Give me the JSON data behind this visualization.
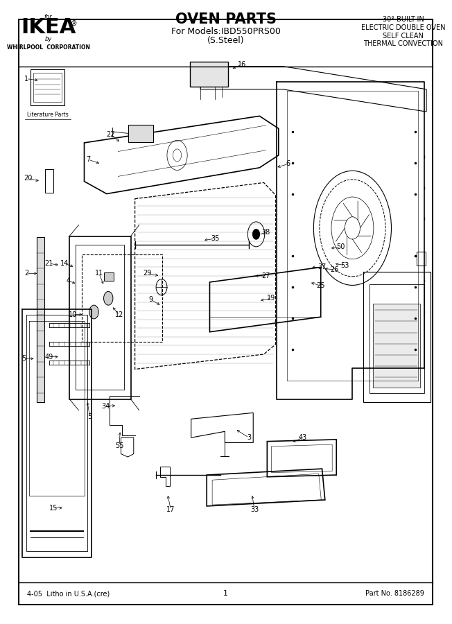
{
  "title": "OVEN PARTS",
  "subtitle1": "For Models:IBD550PRS00",
  "subtitle2": "(S.Steel)",
  "ikea_text": "IKEA",
  "ikea_for": "for",
  "ikea_by": "by",
  "ikea_whirlpool": "WHIRLPOOL  CORPORATION",
  "top_right_line1": "30° BUILT-IN",
  "top_right_line2": "ELECTRIC DOUBLE OVEN",
  "top_right_line3": "SELF CLEAN",
  "top_right_line4": "THERMAL CONVECTION",
  "footer_left": "4-05  Litho in U.S.A.(cre)",
  "footer_center": "1",
  "footer_right": "Part No. 8186289",
  "lit_parts_label": "Literature Parts",
  "bg_color": "#ffffff",
  "border_color": "#000000",
  "fig_width": 6.52,
  "fig_height": 9.0,
  "dpi": 100
}
